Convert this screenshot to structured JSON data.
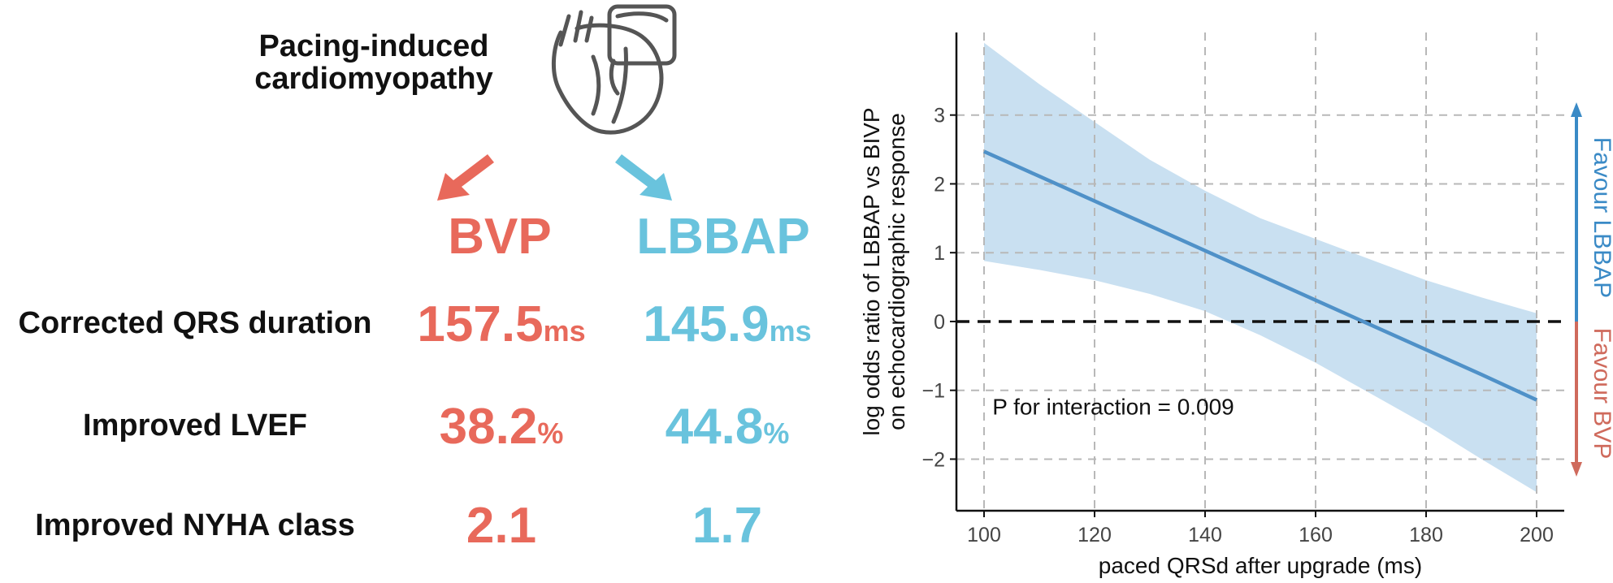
{
  "left_panel": {
    "title_lines": [
      "Pacing-induced",
      "cardiomyopathy"
    ],
    "heart_icon": "heart-pacemaker-icon",
    "groups": [
      {
        "name": "BVP",
        "color": "#e8695b"
      },
      {
        "name": "LBBAP",
        "color": "#69c3dd"
      }
    ],
    "rows": [
      {
        "label": "Corrected QRS duration",
        "values": [
          {
            "number": "157.5",
            "unit": "ms"
          },
          {
            "number": "145.9",
            "unit": "ms"
          }
        ]
      },
      {
        "label": "Improved LVEF",
        "values": [
          {
            "number": "38.2",
            "unit": "%"
          },
          {
            "number": "44.8",
            "unit": "%"
          }
        ]
      },
      {
        "label": "Improved NYHA class",
        "values": [
          {
            "number": "2.1",
            "unit": ""
          },
          {
            "number": "1.7",
            "unit": ""
          }
        ]
      }
    ]
  },
  "chart_data": {
    "type": "line",
    "xlabel": "paced QRSd after upgrade (ms)",
    "ylabel_lines": [
      "log odds ratio of LBBAP vs BIVP",
      "on echocardiographic response"
    ],
    "xlim": [
      95,
      205
    ],
    "ylim": [
      -2.75,
      4.2
    ],
    "xticks": [
      100,
      120,
      140,
      160,
      180,
      200
    ],
    "yticks": [
      -2,
      -1,
      0,
      1,
      2,
      3
    ],
    "ytick_labels": [
      "−2",
      "−1",
      "0",
      "1",
      "2",
      "3"
    ],
    "grid": true,
    "series": [
      {
        "x": [
          100,
          110,
          120,
          130,
          140,
          150,
          160,
          170,
          180,
          190,
          200
        ],
        "y": [
          2.47,
          2.11,
          1.75,
          1.39,
          1.03,
          0.67,
          0.31,
          -0.05,
          -0.41,
          -0.77,
          -1.14
        ],
        "lower": [
          0.88,
          0.75,
          0.6,
          0.4,
          0.15,
          -0.2,
          -0.6,
          -1.05,
          -1.5,
          -2.0,
          -2.48
        ],
        "upper": [
          4.05,
          3.45,
          2.9,
          2.35,
          1.9,
          1.5,
          1.2,
          0.9,
          0.6,
          0.35,
          0.12
        ],
        "color": "#4f91c8",
        "band_color": "#c9e0f1"
      }
    ],
    "reference_line": {
      "y": 0,
      "style": "dashed"
    },
    "annotation": "P for interaction = 0.009",
    "side_labels": [
      {
        "text": "Favour LBBAP",
        "color": "#3a8ac6"
      },
      {
        "text": "Favour BVP",
        "color": "#cf6a5c"
      }
    ]
  }
}
